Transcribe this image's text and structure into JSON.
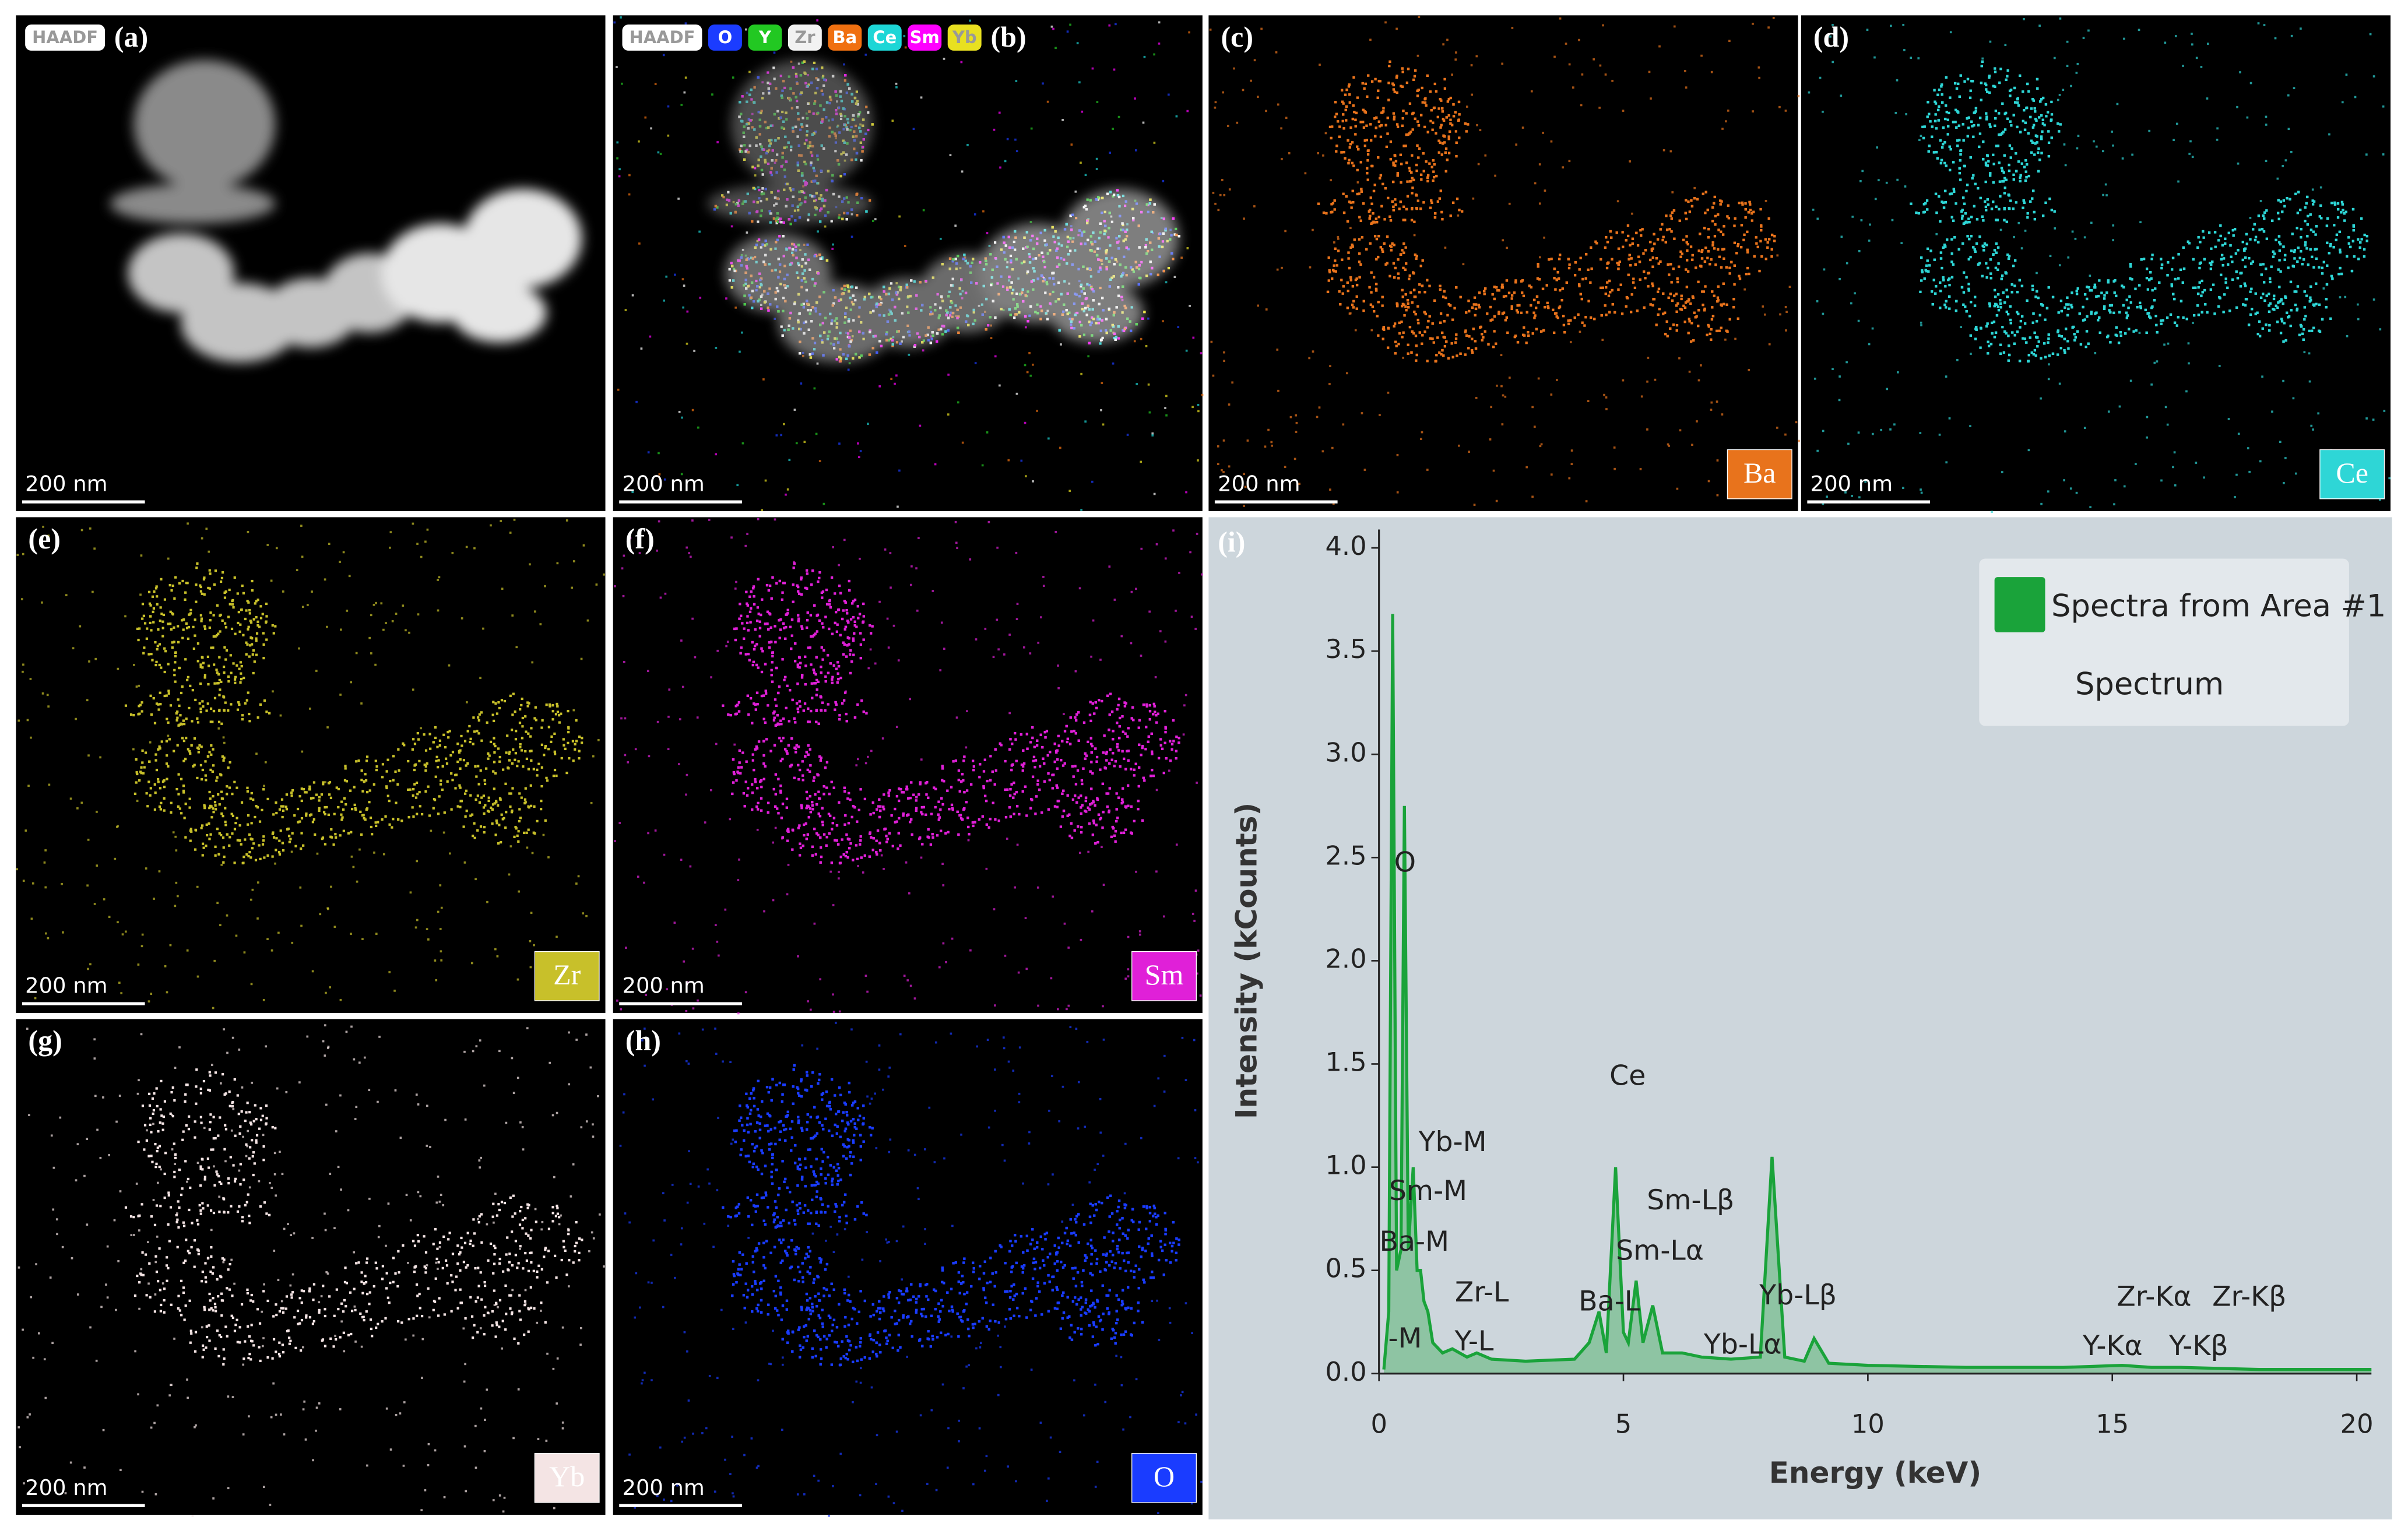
{
  "figure": {
    "panels": [
      {
        "label": "(a)",
        "badges": [
          {
            "text": "HAADF",
            "color": "#ffffff"
          }
        ],
        "scale_bar": "200 nm"
      },
      {
        "label": "(b)",
        "badges": [
          {
            "text": "HAADF",
            "color": "#ffffff"
          },
          {
            "text": "O",
            "color": "#1b3cff"
          },
          {
            "text": "Y",
            "color": "#22c822"
          },
          {
            "text": "Zr",
            "color": "#f2f2f2"
          },
          {
            "text": "Ba",
            "color": "#f07010"
          },
          {
            "text": "Ce",
            "color": "#1dd6d6"
          },
          {
            "text": "Sm",
            "color": "#ff00ff"
          },
          {
            "text": "Yb",
            "color": "#e8e020"
          }
        ],
        "scale_bar": "200 nm"
      },
      {
        "label": "(c)",
        "element": "Ba",
        "color": "#e8731c",
        "scale_bar": "200 nm"
      },
      {
        "label": "(d)",
        "element": "Ce",
        "color": "#2ed6d6",
        "scale_bar": "200 nm"
      },
      {
        "label": "(e)",
        "element": "Zr",
        "color": "#c8c02a",
        "scale_bar": "200 nm"
      },
      {
        "label": "(f)",
        "element": "Sm",
        "color": "#e020d8",
        "scale_bar": "200 nm"
      },
      {
        "label": "(g)",
        "element": "Yb",
        "color": "#f4e4e4",
        "scale_bar": "200 nm"
      },
      {
        "label": "(h)",
        "element": "O",
        "color": "#1a3cff",
        "scale_bar": "200 nm"
      }
    ]
  },
  "chart_data": {
    "type": "line",
    "label": "(i)",
    "xlabel": "Energy (keV)",
    "ylabel": "Intensity (kCounts)",
    "xlim": [
      0,
      20.3
    ],
    "ylim": [
      0,
      4.1
    ],
    "xticks": [
      0,
      5,
      10,
      15,
      20
    ],
    "yticks": [
      {
        "value": 0,
        "label": "0.0"
      },
      0.5,
      {
        "value": 1,
        "label": "1.0"
      },
      1.5,
      {
        "value": 2,
        "label": "2.0"
      },
      2.5,
      {
        "value": 3,
        "label": "3.0"
      },
      3.5,
      {
        "value": 4,
        "label": "4.0"
      }
    ],
    "x": [
      0.1,
      0.2,
      0.28,
      0.36,
      0.45,
      0.52,
      0.6,
      0.7,
      0.78,
      0.85,
      0.92,
      1.0,
      1.1,
      1.3,
      1.5,
      1.8,
      2.0,
      2.3,
      3.0,
      4.0,
      4.3,
      4.5,
      4.65,
      4.84,
      5.0,
      5.1,
      5.26,
      5.4,
      5.6,
      5.8,
      6.2,
      6.6,
      7.2,
      7.8,
      8.04,
      8.3,
      8.7,
      8.9,
      9.2,
      10,
      12,
      14,
      15.2,
      15.8,
      16.4,
      18,
      20,
      20.3
    ],
    "series": [
      {
        "name": "Spectra from Area #1",
        "color": "#1aa33a",
        "values": [
          0.02,
          0.3,
          3.68,
          0.5,
          0.6,
          2.75,
          0.6,
          1.0,
          0.5,
          0.5,
          0.35,
          0.3,
          0.15,
          0.1,
          0.12,
          0.08,
          0.1,
          0.07,
          0.06,
          0.07,
          0.15,
          0.3,
          0.1,
          1.0,
          0.2,
          0.15,
          0.45,
          0.15,
          0.33,
          0.1,
          0.1,
          0.08,
          0.07,
          0.08,
          1.05,
          0.08,
          0.06,
          0.17,
          0.05,
          0.04,
          0.03,
          0.03,
          0.04,
          0.03,
          0.03,
          0.02,
          0.02,
          0.02
        ]
      }
    ],
    "legend_note": "Spectrum",
    "annotations": [
      "O",
      "Yb-M",
      "Sm-M",
      "Ba-M",
      "Zr-L",
      "Y-L",
      "-M",
      "Ce",
      "Sm-Lβ",
      "Sm-Lα",
      "Ba-L",
      "Yb-Lβ",
      "Yb-Lα",
      "Zr-Kα",
      "Zr-Kβ",
      "Y-Kα",
      "Y-Kβ"
    ]
  }
}
